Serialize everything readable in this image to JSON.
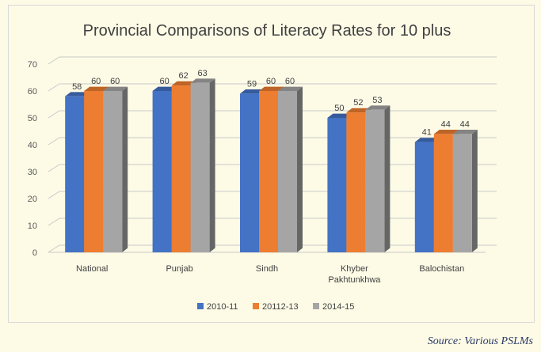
{
  "chart_data": {
    "type": "bar",
    "title": "Provincial Comparisons of Literacy Rates for 10 plus",
    "categories": [
      [
        "National"
      ],
      [
        "Punjab"
      ],
      [
        "Sindh"
      ],
      [
        "Khyber",
        "Pakhtunkhwa"
      ],
      [
        "Balochistan"
      ]
    ],
    "series": [
      {
        "name": "2010-11",
        "values": [
          58,
          60,
          59,
          50,
          41
        ],
        "color": "#4472c4"
      },
      {
        "name": "20112-13",
        "values": [
          60,
          62,
          60,
          52,
          44
        ],
        "color": "#ed7d31"
      },
      {
        "name": "2014-15",
        "values": [
          60,
          63,
          60,
          53,
          44
        ],
        "color": "#a5a5a5"
      }
    ],
    "ylim": [
      0,
      70
    ],
    "yticks": [
      0,
      10,
      20,
      30,
      40,
      50,
      60,
      70
    ],
    "grid": true,
    "legend_position": "bottom"
  },
  "source": "Source: Various PSLMs"
}
